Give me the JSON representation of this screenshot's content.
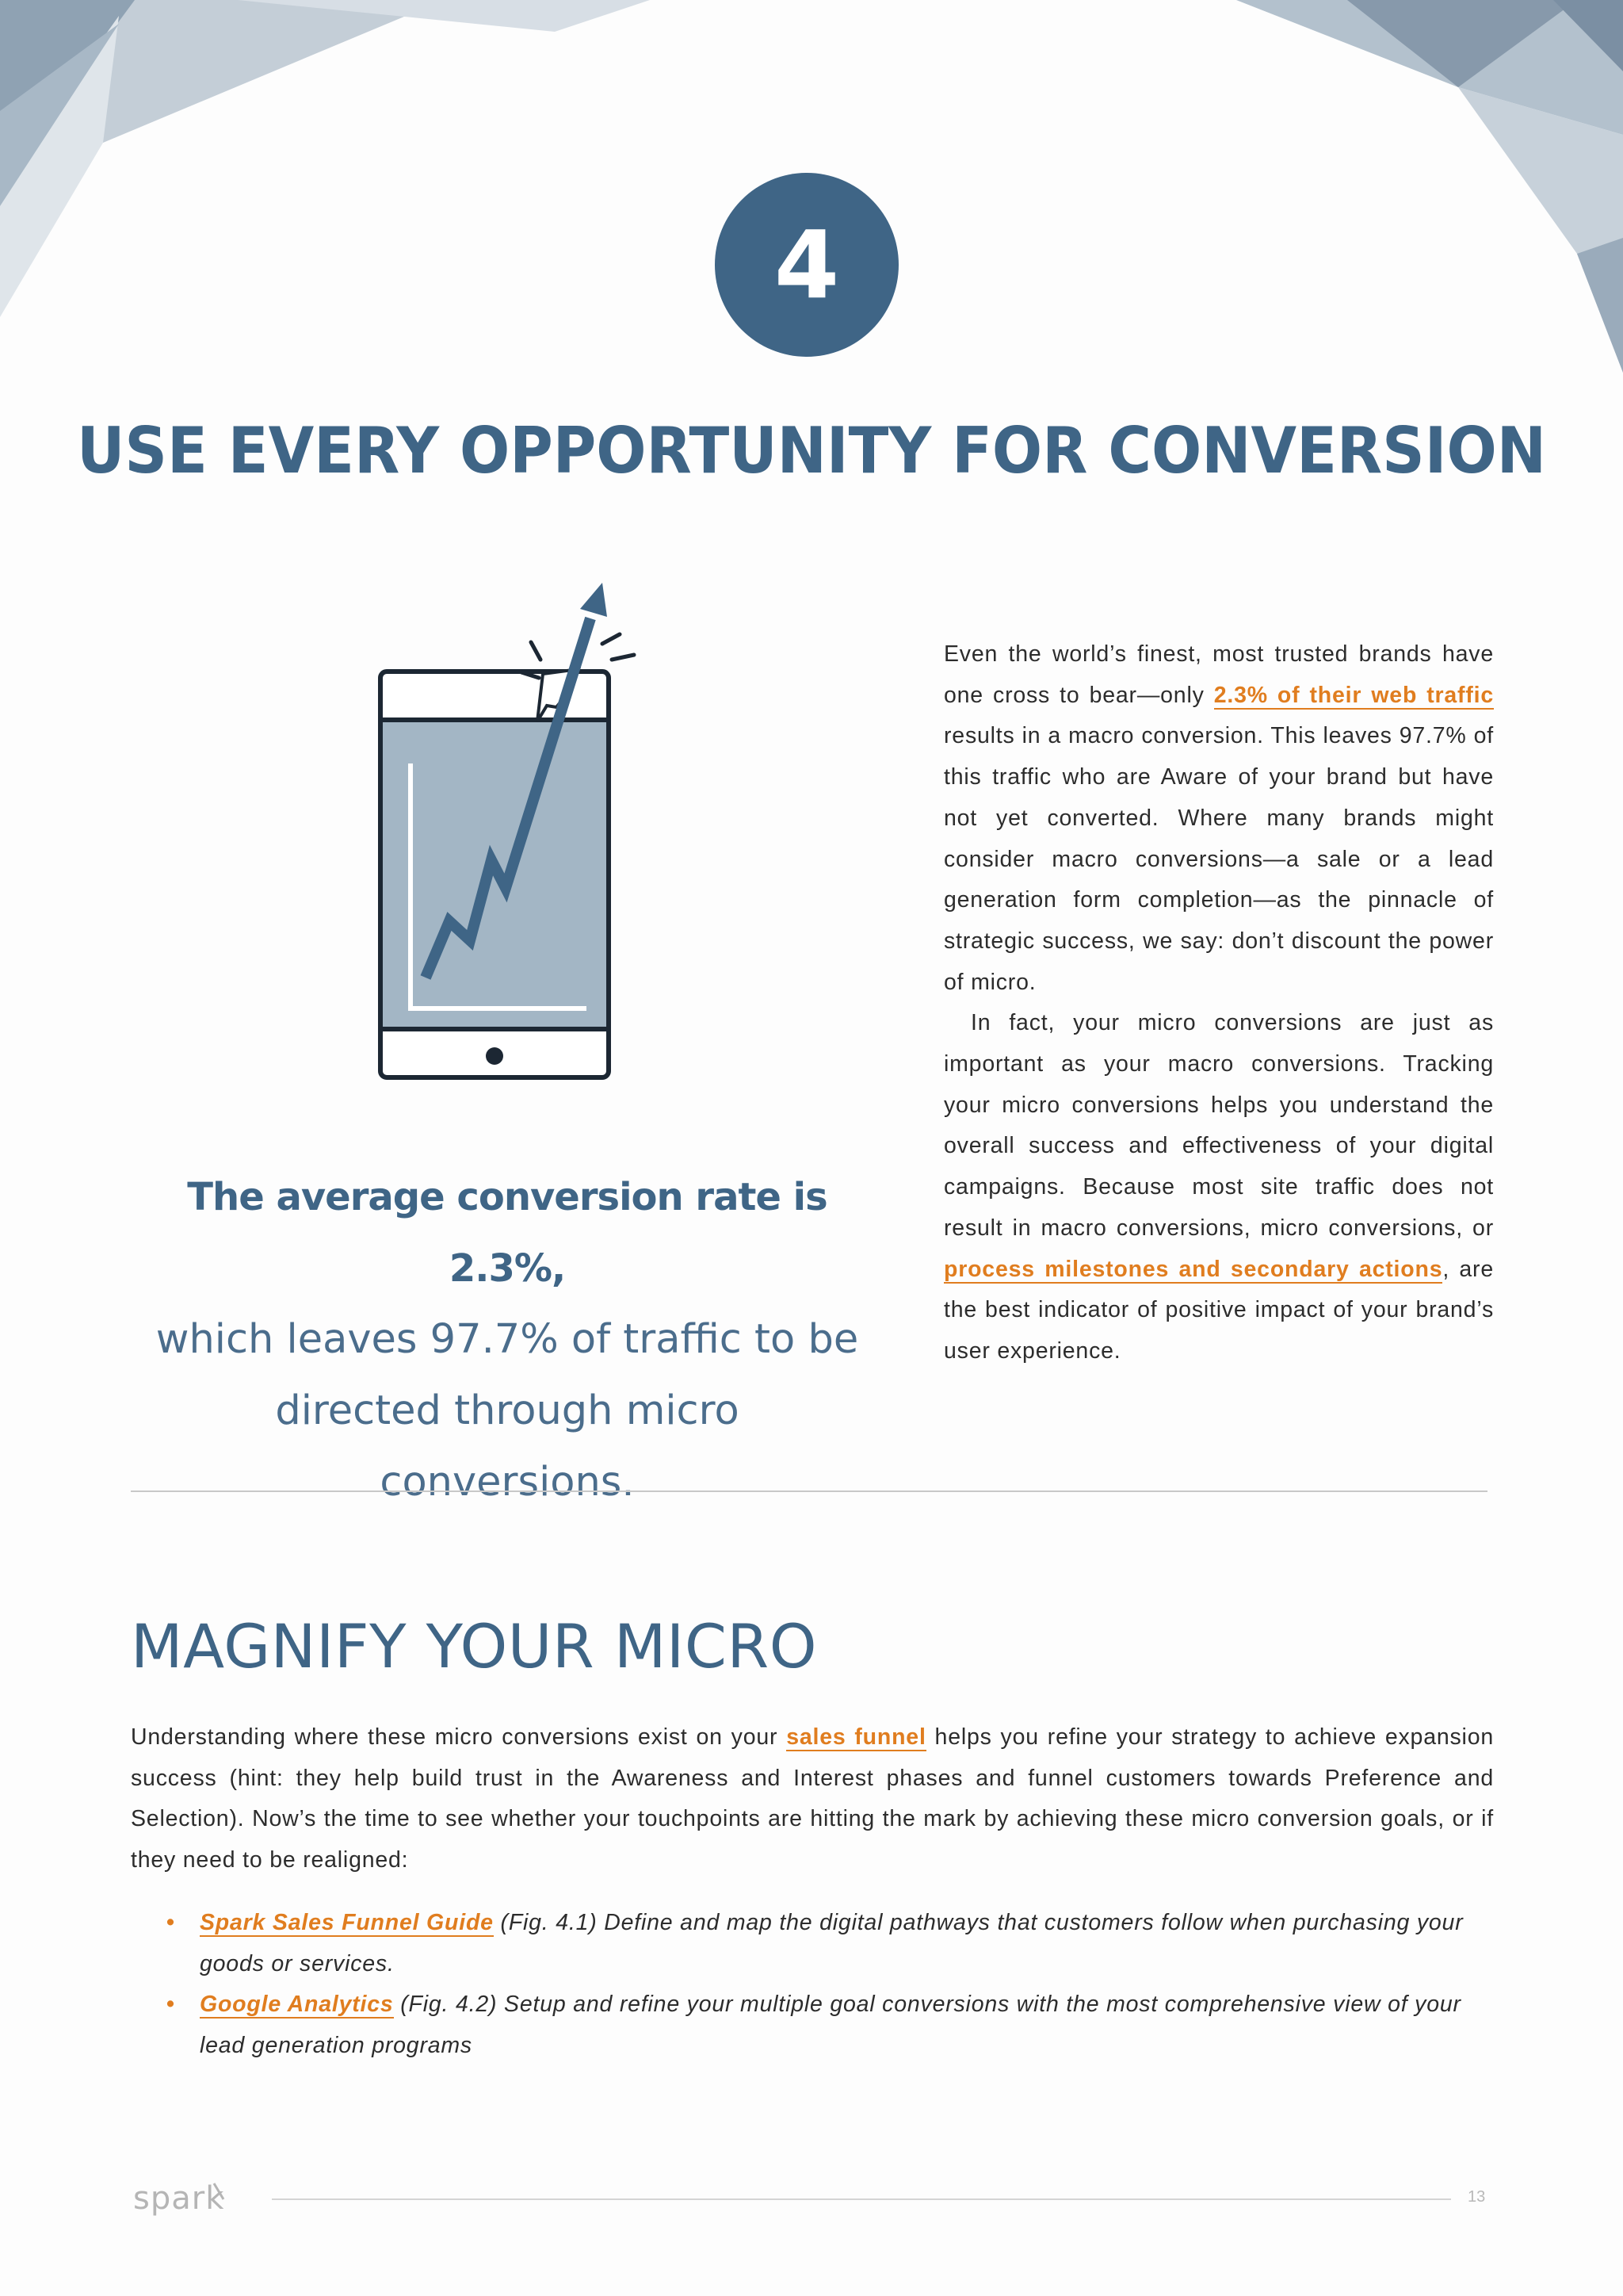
{
  "header": {
    "step_number": "4",
    "title": "USE EVERY OPPORTUNITY FOR CONVERSION"
  },
  "callout": {
    "bold": "The average conversion rate is 2.3%,",
    "light": "which leaves 97.7% of traffic to be directed through micro conversions."
  },
  "body": {
    "p1_before": "Even the world’s finest, most trusted brands have one cross to bear—only ",
    "p1_link": "2.3% of their web traffic",
    "p1_after": " results in a macro conversion. This leaves 97.7% of this traffic who are Aware of your brand but have not yet converted. Where many brands might consider macro conversions—a sale or a lead generation form completion—as the pinnacle of strategic success, we say: don’t discount the power of micro.",
    "p2_before": "In fact, your micro conversions are just as important as your macro conversions. Tracking your micro conversions helps you understand the overall success and effectiveness of your digital campaigns. Because most site traffic does not result in macro conversions, micro conversions, or ",
    "p2_link": "process milestones and secondary actions",
    "p2_after": ", are the best indicator of positive impact of your brand’s user experience."
  },
  "section": {
    "title": "MAGNIFY YOUR MICRO",
    "para_before": "Understanding where these micro conversions exist on your ",
    "para_link": "sales funnel",
    "para_after": " helps you refine your strategy to achieve expansion success (hint: they help build trust in the Awareness and Interest phases and funnel customers towards Preference and Selection). Now’s the time to see whether your touchpoints are hitting the mark by achieving these micro conversion goals, or if they need to be realigned:",
    "items": [
      {
        "bullet": "•",
        "link": "Spark Sales Funnel Guide",
        "text": " (Fig. 4.1) Define and map the digital pathways that customers follow when purchasing your goods or services."
      },
      {
        "bullet": "•",
        "link": "Google Analytics",
        "text": " (Fig. 4.2) Setup and refine your multiple goal conversions with the most comprehensive view of your lead generation programs"
      }
    ]
  },
  "footer": {
    "logo_text": "spark",
    "page_number": "13"
  },
  "colors": {
    "primary": "#3f6586",
    "accent": "#e07d1f",
    "screen": "#a3b6c5"
  }
}
